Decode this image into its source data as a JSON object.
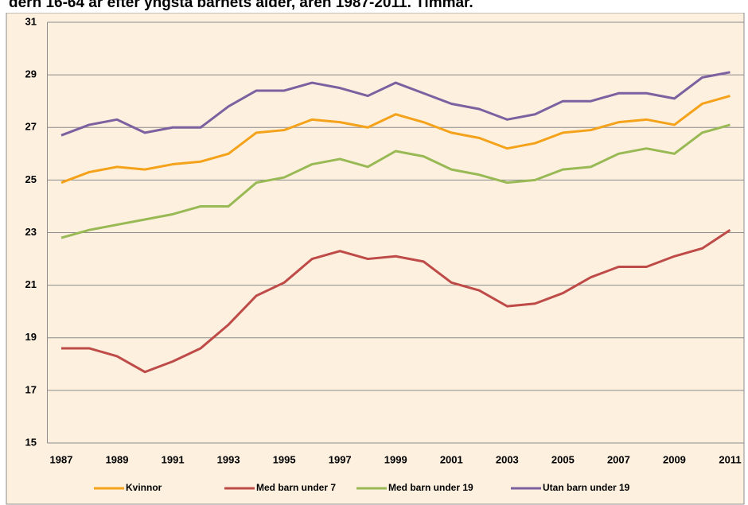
{
  "chart_data": {
    "type": "line",
    "title": "dern 16-64 år efter yngsta barnets ålder, åren 1987-2011. Timmar.",
    "categories": [
      "1987",
      null,
      "1989",
      null,
      "1991",
      null,
      "1993",
      null,
      "1995",
      null,
      "1997",
      null,
      "1999",
      null,
      "2001",
      null,
      "2003",
      null,
      "2005",
      null,
      "2007",
      null,
      "2009",
      null,
      "2011"
    ],
    "series": [
      {
        "name": "Kvinnor",
        "color": "#f5a21b",
        "values": [
          24.9,
          25.3,
          25.5,
          25.4,
          25.6,
          25.7,
          26.0,
          26.8,
          26.9,
          27.3,
          27.2,
          27.0,
          27.5,
          27.2,
          26.8,
          26.6,
          26.2,
          26.4,
          26.8,
          26.9,
          27.2,
          27.3,
          27.1,
          27.9,
          28.2
        ]
      },
      {
        "name": "Med barn under 7",
        "color": "#be4b48",
        "values": [
          18.6,
          18.6,
          18.3,
          17.7,
          18.1,
          18.6,
          19.5,
          20.6,
          21.1,
          22.0,
          22.3,
          22.0,
          22.1,
          21.9,
          21.1,
          20.8,
          20.2,
          20.3,
          20.7,
          21.3,
          21.7,
          21.7,
          22.1,
          22.4,
          23.1
        ]
      },
      {
        "name": "Med barn under 19",
        "color": "#98b954",
        "values": [
          22.8,
          23.1,
          23.3,
          23.5,
          23.7,
          24.0,
          24.0,
          24.9,
          25.1,
          25.6,
          25.8,
          25.5,
          26.1,
          25.9,
          25.4,
          25.2,
          24.9,
          25.0,
          25.4,
          25.5,
          26.0,
          26.2,
          26.0,
          26.8,
          27.1
        ]
      },
      {
        "name": "Utan barn under 19",
        "color": "#7d60a0",
        "values": [
          26.7,
          27.1,
          27.3,
          26.8,
          27.0,
          27.0,
          27.8,
          28.4,
          28.4,
          28.7,
          28.5,
          28.2,
          28.7,
          28.3,
          27.9,
          27.7,
          27.3,
          27.5,
          28.0,
          28.0,
          28.3,
          28.3,
          28.1,
          28.9,
          29.1
        ]
      }
    ],
    "ylim": [
      15,
      31
    ],
    "yticks": [
      15,
      17,
      19,
      21,
      23,
      25,
      27,
      29,
      31
    ],
    "grid": true
  }
}
